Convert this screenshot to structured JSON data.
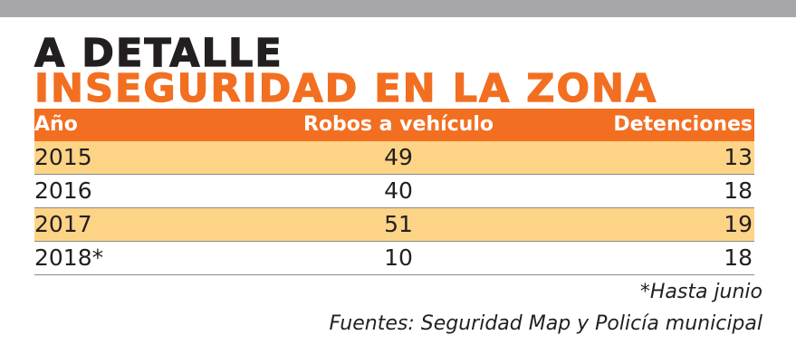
{
  "title_line1": "A DETALLE",
  "title_line2": "INSEGURIDAD EN LA ZONA",
  "colors": {
    "top_bar": "#a7a7aa",
    "accent": "#f26f21",
    "row_highlight": "#fdd486",
    "text": "#231f20"
  },
  "chart_data": {
    "type": "table",
    "columns": [
      "Año",
      "Robos a vehículo",
      "Detenciones"
    ],
    "rows": [
      {
        "year": "2015",
        "robos": "49",
        "detenciones": "13"
      },
      {
        "year": "2016",
        "robos": "40",
        "detenciones": "18"
      },
      {
        "year": "2017",
        "robos": "51",
        "detenciones": "19"
      },
      {
        "year": "2018*",
        "robos": "10",
        "detenciones": "18"
      }
    ]
  },
  "footnote": "*Hasta junio",
  "sources": "Fuentes: Seguridad Map y Policía municipal"
}
